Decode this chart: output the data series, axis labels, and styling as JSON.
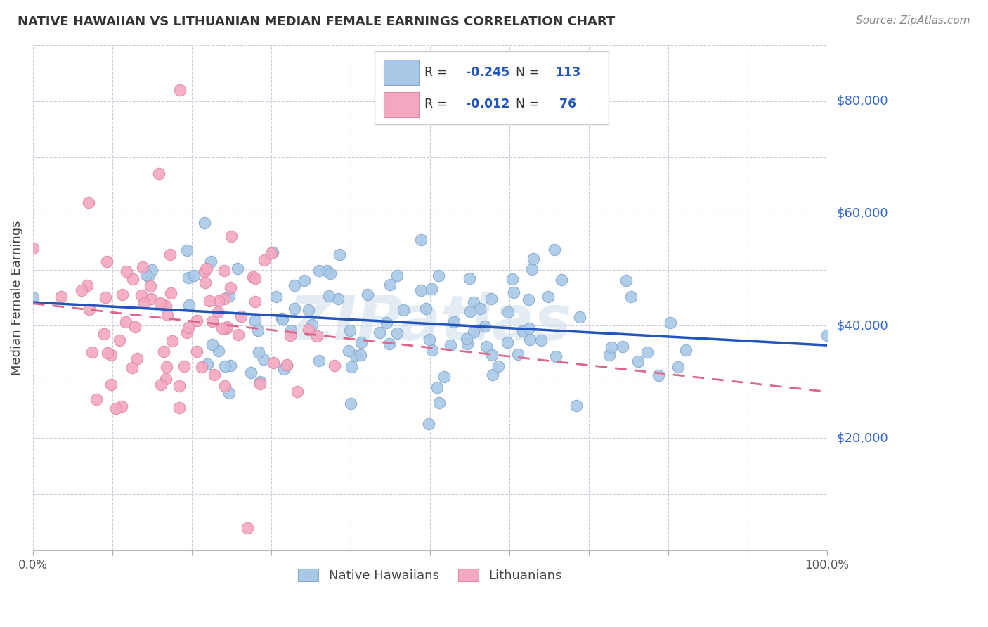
{
  "title": "NATIVE HAWAIIAN VS LITHUANIAN MEDIAN FEMALE EARNINGS CORRELATION CHART",
  "source": "Source: ZipAtlas.com",
  "ylabel": "Median Female Earnings",
  "y_range": [
    0,
    90000
  ],
  "x_range": [
    0.0,
    1.0
  ],
  "watermark": "ZIPatlas",
  "blue_scatter_color": "#a8c8e8",
  "pink_scatter_color": "#f4a8c0",
  "blue_edge_color": "#88aacc",
  "pink_edge_color": "#dd88a8",
  "blue_line_color": "#2255bb",
  "pink_line_color": "#dd6688",
  "background_color": "#ffffff",
  "grid_color": "#ccccdd",
  "title_color": "#333333",
  "right_label_color": "#3366cc",
  "source_color": "#888888",
  "legend_text_color": "#333333",
  "legend_value_color": "#2255bb",
  "seed": 7
}
